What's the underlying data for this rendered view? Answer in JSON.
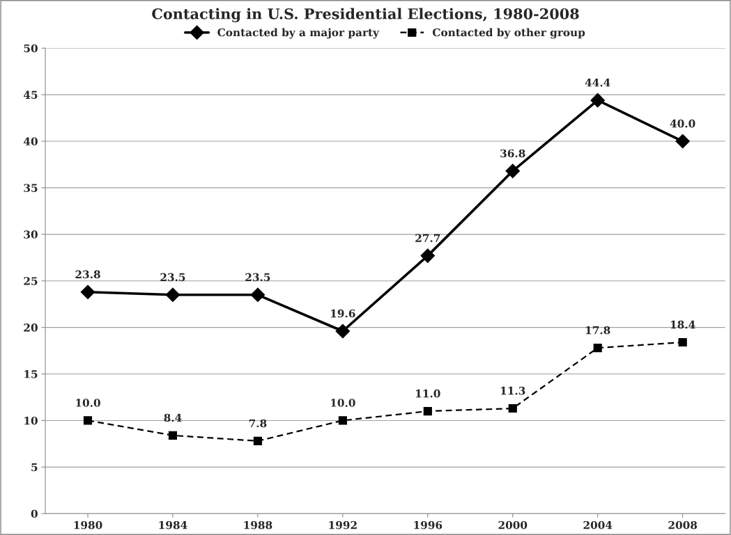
{
  "chart_data": {
    "type": "line",
    "title": "Contacting in U.S. Presidential Elections, 1980-2008",
    "categories": [
      "1980",
      "1984",
      "1988",
      "1992",
      "1996",
      "2000",
      "2004",
      "2008"
    ],
    "series": [
      {
        "name": "Contacted by a major party",
        "color": "#000000",
        "marker": "diamond",
        "line_style": "solid",
        "values": [
          23.8,
          23.5,
          23.5,
          19.6,
          27.7,
          36.8,
          44.4,
          40.0
        ],
        "value_labels": [
          "23.8",
          "23.5",
          "23.5",
          "19.6",
          "27.7",
          "36.8",
          "44.4",
          "40.0"
        ]
      },
      {
        "name": "Contacted by other group",
        "color": "#000000",
        "marker": "square",
        "line_style": "dashed",
        "values": [
          10.0,
          8.4,
          7.8,
          10.0,
          11.0,
          11.3,
          17.8,
          18.4
        ],
        "value_labels": [
          "10.0",
          "8.4",
          "7.8",
          "10.0",
          "11.0",
          "11.3",
          "17.8",
          "18.4"
        ]
      }
    ],
    "ylim": [
      0,
      50
    ],
    "yticks": [
      0,
      5,
      10,
      15,
      20,
      25,
      30,
      35,
      40,
      45,
      50
    ],
    "grid": "y",
    "legend": "top"
  }
}
